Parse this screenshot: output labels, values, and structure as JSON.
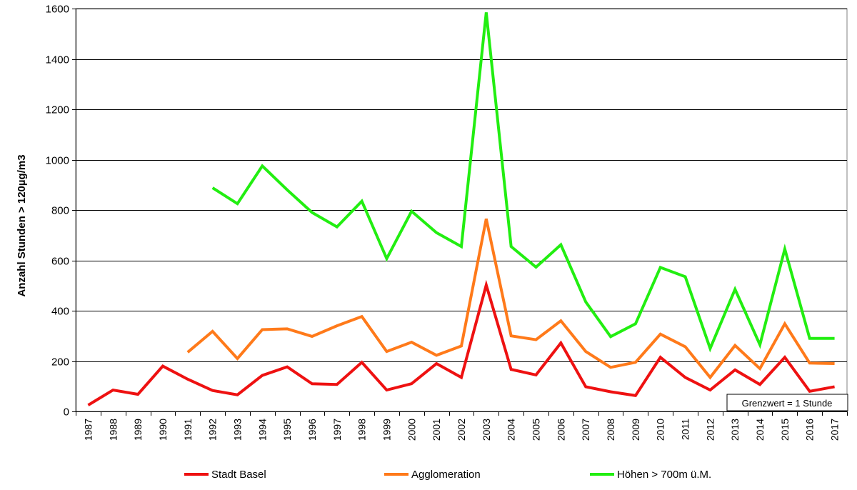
{
  "chart_data": {
    "type": "line",
    "ylabel": "Anzahl Stunden > 120µg/m3",
    "xlabel": "",
    "ylim": [
      0,
      1600
    ],
    "yticks": [
      0,
      200,
      400,
      600,
      800,
      1000,
      1200,
      1400,
      1600
    ],
    "grid": true,
    "legend_position": "bottom",
    "annotation": "Grenzwert = 1 Stunde",
    "categories": [
      "1987",
      "1988",
      "1989",
      "1990",
      "1991",
      "1992",
      "1993",
      "1994",
      "1995",
      "1996",
      "1997",
      "1998",
      "1999",
      "2000",
      "2001",
      "2002",
      "2003",
      "2004",
      "2005",
      "2006",
      "2007",
      "2008",
      "2009",
      "2010",
      "2011",
      "2012",
      "2013",
      "2014",
      "2015",
      "2016",
      "2017"
    ],
    "series": [
      {
        "name": "Stadt Basel",
        "color": "#ee1111",
        "values": [
          25,
          85,
          68,
          180,
          128,
          83,
          66,
          143,
          177,
          110,
          107,
          195,
          85,
          110,
          190,
          135,
          502,
          167,
          145,
          272,
          98,
          78,
          63,
          215,
          135,
          85,
          165,
          107,
          215,
          80,
          98
        ]
      },
      {
        "name": "Agglomeration",
        "color": "#ff7a1a",
        "values": [
          null,
          null,
          null,
          null,
          235,
          318,
          210,
          325,
          328,
          298,
          340,
          377,
          238,
          275,
          223,
          260,
          765,
          300,
          285,
          360,
          238,
          175,
          195,
          307,
          257,
          135,
          262,
          170,
          348,
          192,
          190
        ]
      },
      {
        "name": "Höhen > 700m ü.M.",
        "color": "#22ee11",
        "values": [
          null,
          null,
          null,
          null,
          null,
          888,
          825,
          975,
          880,
          790,
          733,
          835,
          607,
          795,
          710,
          655,
          1585,
          655,
          573,
          662,
          435,
          297,
          348,
          572,
          535,
          250,
          485,
          265,
          645,
          290,
          290
        ]
      }
    ]
  }
}
